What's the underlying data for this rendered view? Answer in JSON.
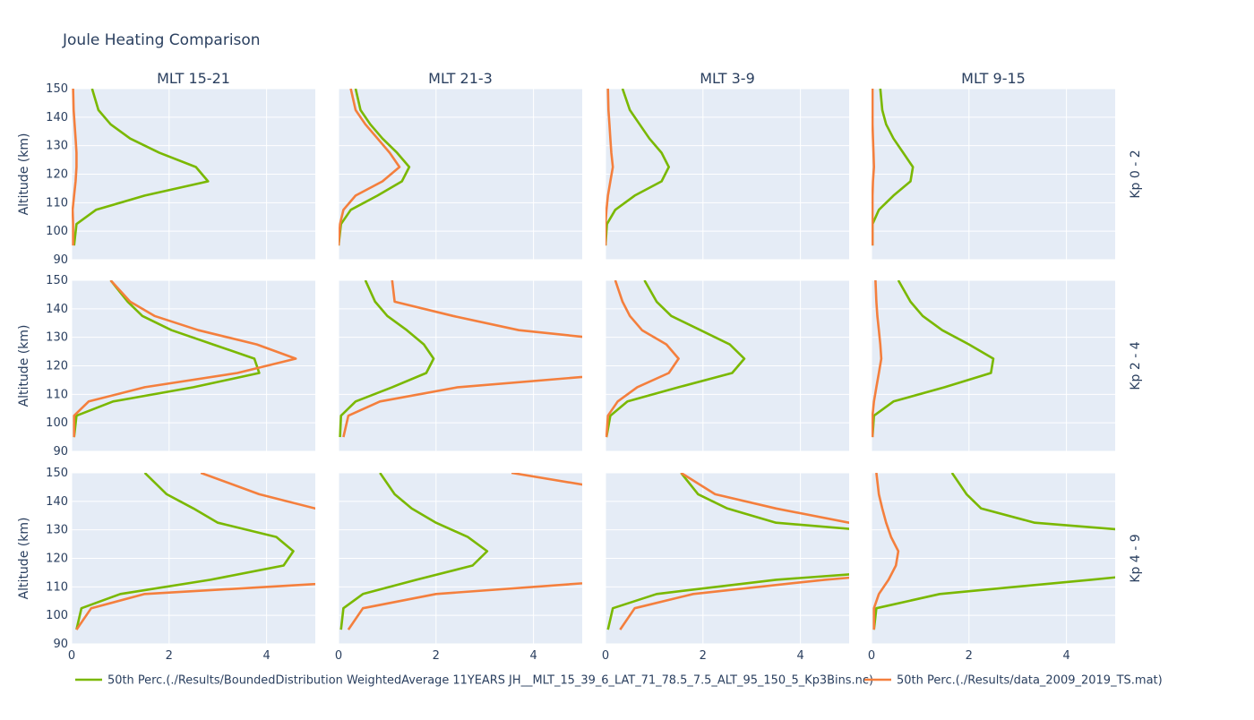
{
  "chart_data": {
    "type": "line",
    "title": "Joule Heating Comparison",
    "column_titles": [
      "MLT 15-21",
      "MLT 21-3",
      "MLT 3-9",
      "MLT 9-15"
    ],
    "row_titles": [
      "Kp 0 - 2",
      "Kp 2 - 4",
      "Kp 4 - 9"
    ],
    "ylabel": "Altitude (km)",
    "xlim": [
      0,
      5
    ],
    "ylim": [
      90,
      150
    ],
    "xticks": [
      0,
      2,
      4
    ],
    "yticks": [
      90,
      100,
      110,
      120,
      130,
      140,
      150
    ],
    "grid": true,
    "legend": {
      "placement": "bottom",
      "items": [
        {
          "label": "50th Perc.(./Results/BoundedDistribution WeightedAverage 11YEARS JH__MLT_15_39_6_LAT_71_78.5_7.5_ALT_95_150_5_Kp3Bins.nc)",
          "color": "#7ab800"
        },
        {
          "label": "50th Perc.(./Results/data_2009_2019_TS.mat)",
          "color": "#f47f3d"
        }
      ]
    },
    "y": [
      95,
      102.5,
      107.5,
      112.5,
      117.5,
      122.5,
      127.5,
      132.5,
      137.5,
      142.5,
      150
    ],
    "series": [
      {
        "color": "#7ab800",
        "panels": [
          [
            0.05,
            0.1,
            0.5,
            1.5,
            2.8,
            2.55,
            1.8,
            1.2,
            0.8,
            0.55,
            0.42
          ],
          [
            0.0,
            0.05,
            0.25,
            0.8,
            1.3,
            1.45,
            1.2,
            0.9,
            0.65,
            0.45,
            0.35
          ],
          [
            0.0,
            0.03,
            0.2,
            0.6,
            1.15,
            1.3,
            1.15,
            0.9,
            0.7,
            0.5,
            0.35
          ],
          [
            0.02,
            0.02,
            0.15,
            0.45,
            0.8,
            0.85,
            0.65,
            0.45,
            0.3,
            0.22,
            0.18
          ],
          [
            0.05,
            0.1,
            0.85,
            2.5,
            3.85,
            3.75,
            2.9,
            2.05,
            1.45,
            1.15,
            0.8
          ],
          [
            0.03,
            0.05,
            0.35,
            1.1,
            1.8,
            1.95,
            1.75,
            1.4,
            1.0,
            0.75,
            0.55
          ],
          [
            0.02,
            0.1,
            0.45,
            1.5,
            2.6,
            2.85,
            2.55,
            1.95,
            1.35,
            1.05,
            0.8
          ],
          [
            0.02,
            0.05,
            0.45,
            1.5,
            2.45,
            2.5,
            2.0,
            1.45,
            1.05,
            0.8,
            0.55
          ],
          [
            0.1,
            0.2,
            1.0,
            2.85,
            4.35,
            4.55,
            4.2,
            3.0,
            2.5,
            1.95,
            1.5
          ],
          [
            0.05,
            0.1,
            0.5,
            1.6,
            2.75,
            3.05,
            2.65,
            2.0,
            1.5,
            1.15,
            0.85
          ],
          [
            0.05,
            0.15,
            1.05,
            3.5,
            7.5,
            8.0,
            7.0,
            3.5,
            2.5,
            1.9,
            1.55
          ],
          [
            0.05,
            0.1,
            1.4,
            4.5,
            7.5,
            7.5,
            7.0,
            3.35,
            2.25,
            1.95,
            1.65
          ]
        ]
      },
      {
        "color": "#f47f3d",
        "panels": [
          [
            0.03,
            0.03,
            0.02,
            0.05,
            0.08,
            0.1,
            0.1,
            0.08,
            0.06,
            0.04,
            0.03
          ],
          [
            0.0,
            0.03,
            0.1,
            0.35,
            0.9,
            1.25,
            1.05,
            0.8,
            0.55,
            0.35,
            0.25
          ],
          [
            0.0,
            0.0,
            0.02,
            0.05,
            0.1,
            0.15,
            0.12,
            0.1,
            0.08,
            0.06,
            0.05
          ],
          [
            0.02,
            0.02,
            0.02,
            0.02,
            0.03,
            0.05,
            0.04,
            0.03,
            0.02,
            0.02,
            0.02
          ],
          [
            0.05,
            0.05,
            0.35,
            1.5,
            3.4,
            4.6,
            3.8,
            2.6,
            1.7,
            1.2,
            0.8
          ],
          [
            0.1,
            0.2,
            0.85,
            2.45,
            6.0,
            8.0,
            6.5,
            3.7,
            2.35,
            1.15,
            1.1
          ],
          [
            0.02,
            0.05,
            0.25,
            0.65,
            1.3,
            1.5,
            1.25,
            0.75,
            0.5,
            0.35,
            0.2
          ],
          [
            0.02,
            0.02,
            0.05,
            0.1,
            0.15,
            0.2,
            0.18,
            0.15,
            0.12,
            0.1,
            0.08
          ],
          [
            0.1,
            0.4,
            1.5,
            6.5,
            8.0,
            8.0,
            8.0,
            6.5,
            5.0,
            3.85,
            2.65
          ],
          [
            0.2,
            0.5,
            2.0,
            6.0,
            8.0,
            8.0,
            8.0,
            8.0,
            8.0,
            6.2,
            3.55
          ],
          [
            0.3,
            0.6,
            1.8,
            4.5,
            8.0,
            8.0,
            7.0,
            5.0,
            3.5,
            2.25,
            1.55
          ],
          [
            0.05,
            0.05,
            0.15,
            0.35,
            0.5,
            0.55,
            0.4,
            0.3,
            0.22,
            0.15,
            0.1
          ]
        ]
      }
    ]
  }
}
